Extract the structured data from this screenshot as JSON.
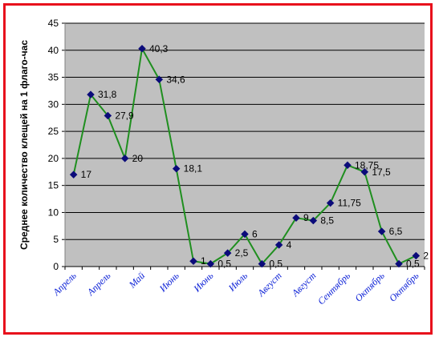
{
  "chart_data": {
    "type": "line",
    "ylabel": "Среднее количество клещей на 1 флаго-час",
    "xlabel": "",
    "ylim": [
      0,
      45
    ],
    "yticks": [
      0,
      5,
      10,
      15,
      20,
      25,
      30,
      35,
      40,
      45
    ],
    "grid": true,
    "x_category_labels": [
      "Апрель",
      "Апрель",
      "Май",
      "Июнь",
      "Июнь",
      "Июль",
      "Август",
      "Август",
      "Сентябрь",
      "Октябрь",
      "Октябрь"
    ],
    "series": [
      {
        "values": [
          17,
          31.8,
          27.9,
          20,
          40.3,
          34.6,
          18.1,
          1,
          0.5,
          2.5,
          6,
          0.5,
          4,
          9,
          8.5,
          11.75,
          18.75,
          17.5,
          6.5,
          0.5,
          2
        ],
        "data_labels": [
          "17",
          "31,8",
          "27,9",
          "20",
          "40,3",
          "34,6",
          "18,1",
          "1",
          "0,5",
          "2,5",
          "6",
          "0,5",
          "4",
          "9",
          "8,5",
          "11,75",
          "18,75",
          "17,5",
          "6,5",
          "0,5",
          "2"
        ]
      }
    ],
    "colors": {
      "plot_background": "#c0c0c0",
      "line": "#1f8f1f",
      "marker": "#0b0b7a",
      "frame_border": "#e8101c",
      "category_labels": "#0a1fd6"
    }
  }
}
